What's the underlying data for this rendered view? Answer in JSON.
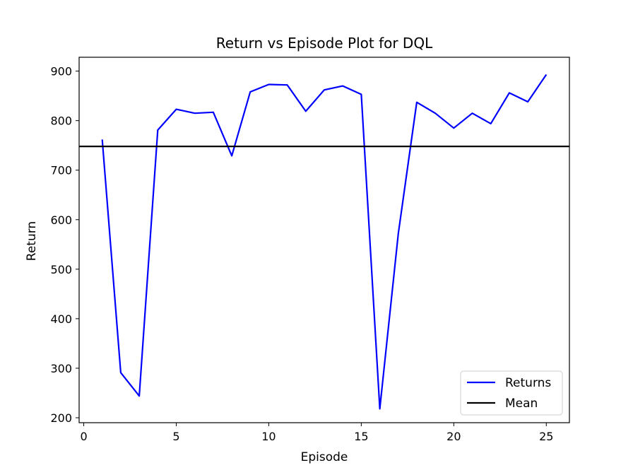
{
  "chart_data": {
    "type": "line",
    "title": "Return vs Episode Plot for DQL",
    "xlabel": "Episode",
    "ylabel": "Return",
    "xlim": [
      -0.25,
      26.25
    ],
    "ylim": [
      190,
      928
    ],
    "xticks": [
      0,
      5,
      10,
      15,
      20,
      25
    ],
    "yticks": [
      200,
      300,
      400,
      500,
      600,
      700,
      800,
      900
    ],
    "grid": false,
    "legend_position": "lower-right",
    "series": [
      {
        "name": "Returns",
        "color": "#0000ff",
        "x": [
          1,
          2,
          3,
          4,
          5,
          6,
          7,
          8,
          9,
          10,
          11,
          12,
          13,
          14,
          15,
          16,
          17,
          18,
          19,
          20,
          21,
          22,
          23,
          24,
          25
        ],
        "y": [
          762,
          291,
          244,
          781,
          823,
          815,
          817,
          729,
          858,
          873,
          872,
          819,
          862,
          870,
          853,
          218,
          572,
          837,
          815,
          785,
          815,
          794,
          856,
          838,
          893
        ]
      }
    ],
    "hlines": [
      {
        "name": "Mean",
        "color": "#000000",
        "y": 748
      }
    ]
  }
}
